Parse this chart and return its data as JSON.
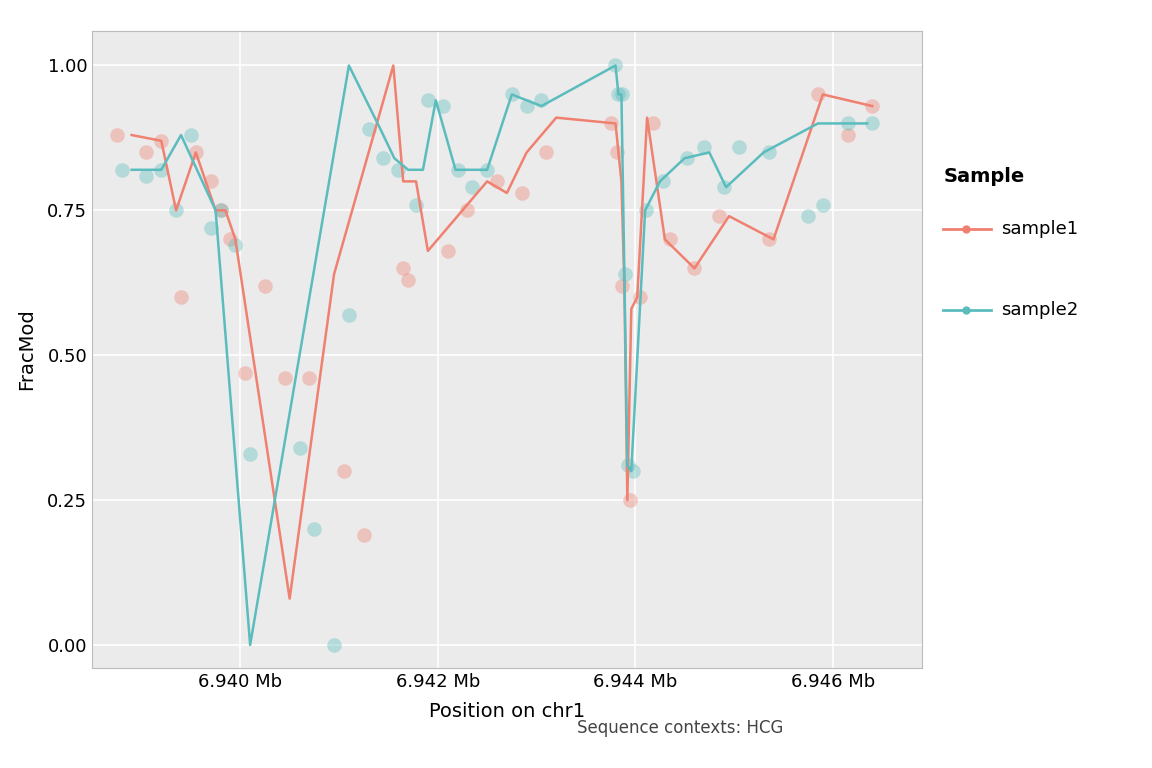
{
  "xlabel": "Position on chr1",
  "ylabel": "FracMod",
  "subtitle": "Sequence contexts: HCG",
  "legend_title": "Sample",
  "xlim": [
    6938500,
    6946900
  ],
  "ylim": [
    -0.04,
    1.06
  ],
  "yticks": [
    0.0,
    0.25,
    0.5,
    0.75,
    1.0
  ],
  "ytick_labels": [
    "0.00",
    "0.25",
    "0.50",
    "0.75",
    "1.00"
  ],
  "xtick_labels": [
    "6.940 Mb",
    "6.942 Mb",
    "6.944 Mb",
    "6.946 Mb"
  ],
  "xtick_positions": [
    6940000,
    6942000,
    6944000,
    6946000
  ],
  "color_s1": "#F08070",
  "color_s2": "#5BBCBE",
  "background_color": "#ffffff",
  "panel_background": "#ebebeb",
  "grid_color": "#ffffff",
  "line1_x": [
    6938900,
    6939200,
    6939350,
    6939550,
    6939750,
    6939850,
    6939950,
    6940500,
    6940950,
    6941550,
    6941650,
    6941780,
    6941900,
    6942500,
    6942700,
    6942900,
    6943200,
    6943800,
    6943830,
    6943860,
    6943890,
    6943920,
    6943960,
    6944020,
    6944120,
    6944300,
    6944600,
    6944950,
    6945400,
    6945900,
    6946400
  ],
  "line1_y": [
    0.88,
    0.87,
    0.75,
    0.85,
    0.75,
    0.75,
    0.7,
    0.08,
    0.64,
    1.0,
    0.8,
    0.8,
    0.68,
    0.8,
    0.78,
    0.85,
    0.91,
    0.9,
    0.85,
    0.8,
    0.62,
    0.25,
    0.58,
    0.6,
    0.91,
    0.7,
    0.65,
    0.74,
    0.7,
    0.95,
    0.93
  ],
  "line2_x": [
    6938900,
    6939200,
    6939400,
    6939750,
    6940100,
    6941100,
    6941420,
    6941560,
    6941700,
    6941850,
    6941980,
    6942180,
    6942350,
    6942500,
    6942750,
    6943050,
    6943800,
    6943830,
    6943860,
    6943890,
    6943920,
    6943960,
    6944100,
    6944250,
    6944500,
    6944750,
    6944920,
    6945300,
    6945850,
    6946350
  ],
  "line2_y": [
    0.82,
    0.82,
    0.88,
    0.75,
    0.0,
    1.0,
    0.89,
    0.84,
    0.82,
    0.82,
    0.94,
    0.82,
    0.82,
    0.82,
    0.95,
    0.93,
    1.0,
    0.95,
    0.95,
    0.64,
    0.31,
    0.3,
    0.75,
    0.8,
    0.84,
    0.85,
    0.79,
    0.85,
    0.9,
    0.9
  ],
  "scatter1_x": [
    6938750,
    6939050,
    6939200,
    6939400,
    6939550,
    6939700,
    6939800,
    6939900,
    6940050,
    6940250,
    6940450,
    6940700,
    6941050,
    6941250,
    6941650,
    6941700,
    6942100,
    6942300,
    6942600,
    6942850,
    6943100,
    6943750,
    6943820,
    6943870,
    6943950,
    6944050,
    6944180,
    6944350,
    6944600,
    6944850,
    6945350,
    6945850,
    6946150,
    6946400
  ],
  "scatter1_y": [
    0.88,
    0.85,
    0.87,
    0.6,
    0.85,
    0.8,
    0.75,
    0.7,
    0.47,
    0.62,
    0.46,
    0.46,
    0.3,
    0.19,
    0.65,
    0.63,
    0.68,
    0.75,
    0.8,
    0.78,
    0.85,
    0.9,
    0.85,
    0.62,
    0.25,
    0.6,
    0.9,
    0.7,
    0.65,
    0.74,
    0.7,
    0.95,
    0.88,
    0.93
  ],
  "scatter2_x": [
    6938800,
    6939050,
    6939200,
    6939350,
    6939500,
    6939700,
    6939800,
    6939950,
    6940100,
    6940600,
    6940750,
    6940950,
    6941100,
    6941300,
    6941450,
    6941600,
    6941780,
    6941900,
    6942050,
    6942200,
    6942350,
    6942500,
    6942750,
    6942900,
    6943050,
    6943800,
    6943830,
    6943865,
    6943895,
    6943930,
    6943975,
    6944110,
    6944280,
    6944520,
    6944700,
    6944900,
    6945050,
    6945350,
    6945750,
    6945900,
    6946150,
    6946400
  ],
  "scatter2_y": [
    0.82,
    0.81,
    0.82,
    0.75,
    0.88,
    0.72,
    0.75,
    0.69,
    0.33,
    0.34,
    0.2,
    0.0,
    0.57,
    0.89,
    0.84,
    0.82,
    0.76,
    0.94,
    0.93,
    0.82,
    0.79,
    0.82,
    0.95,
    0.93,
    0.94,
    1.0,
    0.95,
    0.95,
    0.64,
    0.31,
    0.3,
    0.75,
    0.8,
    0.84,
    0.86,
    0.79,
    0.86,
    0.85,
    0.74,
    0.76,
    0.9,
    0.9
  ]
}
